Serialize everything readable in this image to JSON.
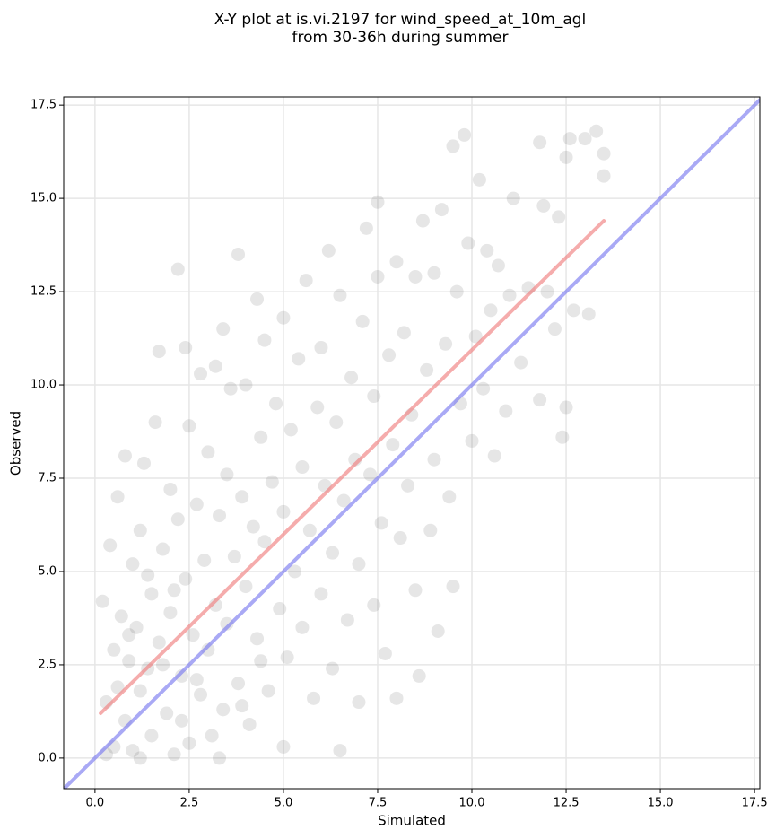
{
  "chart_data": {
    "type": "scatter",
    "title": [
      "X-Y plot at is.vi.2197 for wind_speed_at_10m_agl",
      "from 30-36h during summer"
    ],
    "x_label": "Simulated",
    "y_label": "Observed",
    "xlim": [
      -0.83,
      17.64
    ],
    "ylim": [
      -0.82,
      17.72
    ],
    "xticks": [
      {
        "value": 0,
        "label": "0.0"
      },
      2.5,
      {
        "value": 5,
        "label": "5.0"
      },
      7.5,
      {
        "value": 10,
        "label": "10.0"
      },
      12.5,
      {
        "value": 15,
        "label": "15.0"
      },
      17.5
    ],
    "yticks": [
      {
        "value": 0,
        "label": "0.0"
      },
      2.5,
      {
        "value": 5,
        "label": "5.0"
      },
      7.5,
      {
        "value": 10,
        "label": "10.0"
      },
      12.5,
      {
        "value": 15,
        "label": "15.0"
      },
      17.5
    ],
    "grid": true,
    "point_color": "#555555",
    "point_alpha": 0.15,
    "x": [
      0.2,
      0.3,
      0.4,
      0.5,
      0.5,
      0.6,
      0.7,
      0.8,
      0.8,
      0.9,
      1.0,
      1.0,
      1.1,
      1.2,
      1.2,
      1.3,
      1.4,
      1.5,
      1.5,
      1.6,
      1.7,
      1.7,
      1.8,
      1.9,
      2.0,
      2.0,
      2.1,
      2.2,
      2.2,
      2.3,
      2.4,
      2.4,
      2.5,
      2.5,
      2.6,
      2.7,
      2.8,
      2.8,
      2.9,
      3.0,
      3.0,
      3.1,
      3.2,
      3.2,
      3.3,
      3.4,
      3.4,
      3.5,
      3.5,
      3.6,
      3.7,
      3.8,
      3.8,
      3.9,
      4.0,
      4.0,
      4.1,
      4.2,
      4.3,
      4.3,
      4.4,
      4.5,
      4.5,
      4.6,
      4.7,
      4.8,
      4.9,
      5.0,
      5.0,
      5.0,
      5.1,
      5.2,
      5.3,
      5.4,
      5.5,
      5.5,
      5.6,
      5.7,
      5.8,
      5.9,
      6.0,
      6.0,
      6.1,
      6.2,
      6.3,
      6.3,
      6.4,
      6.5,
      6.5,
      6.6,
      6.7,
      6.8,
      6.9,
      7.0,
      7.0,
      7.1,
      7.2,
      7.3,
      7.4,
      7.4,
      7.5,
      7.5,
      7.6,
      7.7,
      7.8,
      7.9,
      8.0,
      8.0,
      8.1,
      8.2,
      8.3,
      8.4,
      8.5,
      8.5,
      8.6,
      8.7,
      8.8,
      8.9,
      9.0,
      9.0,
      9.1,
      9.2,
      9.3,
      9.4,
      9.5,
      9.5,
      9.6,
      9.7,
      9.8,
      9.9,
      10.0,
      10.1,
      10.2,
      10.3,
      10.4,
      10.5,
      10.6,
      10.7,
      10.9,
      11.0,
      11.1,
      11.3,
      11.5,
      11.8,
      11.8,
      11.9,
      12.0,
      12.2,
      12.3,
      12.4,
      12.5,
      12.5,
      12.6,
      12.7,
      13.0,
      13.1,
      13.3,
      13.5,
      13.5,
      0.3,
      0.6,
      1.2,
      1.8,
      2.3,
      2.7,
      3.3,
      3.9,
      4.4,
      1.4,
      0.9,
      2.1
    ],
    "y": [
      4.2,
      1.5,
      5.7,
      0.3,
      2.9,
      7.0,
      3.8,
      1.0,
      8.1,
      2.6,
      5.2,
      0.2,
      3.5,
      6.1,
      1.8,
      7.9,
      2.4,
      4.4,
      0.6,
      9.0,
      3.1,
      10.9,
      5.6,
      1.2,
      7.2,
      3.9,
      0.1,
      13.1,
      6.4,
      2.2,
      11.0,
      4.8,
      8.9,
      0.4,
      3.3,
      6.8,
      10.3,
      1.7,
      5.3,
      8.2,
      2.9,
      0.6,
      10.5,
      4.1,
      6.5,
      11.5,
      1.3,
      7.6,
      3.6,
      9.9,
      5.4,
      13.5,
      2.0,
      7.0,
      4.6,
      10.0,
      0.9,
      6.2,
      12.3,
      3.2,
      8.6,
      5.8,
      11.2,
      1.8,
      7.4,
      9.5,
      4.0,
      11.8,
      6.6,
      0.3,
      2.7,
      8.8,
      5.0,
      10.7,
      3.5,
      7.8,
      12.8,
      6.1,
      1.6,
      9.4,
      4.4,
      11.0,
      7.3,
      13.6,
      2.4,
      5.5,
      9.0,
      0.2,
      12.4,
      6.9,
      3.7,
      10.2,
      8.0,
      1.5,
      5.2,
      11.7,
      14.2,
      7.6,
      4.1,
      9.7,
      12.9,
      14.9,
      6.3,
      2.8,
      10.8,
      8.4,
      1.6,
      13.3,
      5.9,
      11.4,
      7.3,
      9.2,
      4.5,
      12.9,
      2.2,
      14.4,
      10.4,
      6.1,
      13.0,
      8.0,
      3.4,
      14.7,
      11.1,
      7.0,
      4.6,
      16.4,
      12.5,
      9.5,
      16.7,
      13.8,
      8.5,
      11.3,
      15.5,
      9.9,
      13.6,
      12.0,
      8.1,
      13.2,
      9.3,
      12.4,
      15.0,
      10.6,
      12.6,
      9.6,
      16.5,
      14.8,
      12.5,
      11.5,
      14.5,
      8.6,
      16.1,
      9.4,
      16.6,
      12.0,
      16.6,
      11.9,
      16.8,
      15.6,
      16.2,
      0.1,
      1.9,
      0.0,
      2.5,
      1.0,
      2.1,
      0.0,
      1.4,
      2.6,
      4.9,
      3.3,
      4.5
    ],
    "lines": [
      {
        "color": "#f08080",
        "x": [
          0.15,
          13.5
        ],
        "y": [
          1.2,
          14.4
        ]
      },
      {
        "color": "#7b7bf0",
        "x": [
          -0.83,
          17.64
        ],
        "y": [
          -0.83,
          17.64
        ]
      }
    ]
  }
}
